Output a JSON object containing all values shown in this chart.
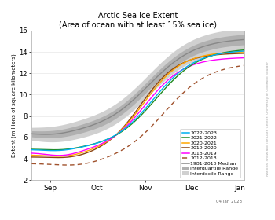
{
  "title_line1": "Arctic Sea Ice Extent",
  "title_line2": "(Area of ocean with at least 15% sea ice)",
  "ylabel": "Extent (millions of square kilometers)",
  "xlabel_date_label": "04 Jan 2023",
  "yticks": [
    2,
    4,
    6,
    8,
    10,
    12,
    14,
    16
  ],
  "ylim": [
    2,
    16
  ],
  "xtick_labels": [
    "Sep",
    "Oct",
    "Nov",
    "Dec",
    "Jan"
  ],
  "background_color": "#ffffff",
  "median_color": "#888888",
  "interquartile_color": "#b0b0b0",
  "interdecile_color": "#d0d0d0",
  "colors": {
    "2022-2023": "#00b0f0",
    "2021-2022": "#228B22",
    "2020-2021": "#FFA500",
    "2019-2020": "#8B4513",
    "2018-2019": "#FF00FF",
    "2012-2013": "#A0522D"
  },
  "watermark_text": "National Snow and Ice Data Center, University of Colorado Boulder",
  "legend_entries": [
    "2022-2023",
    "2021-2022",
    "2020-2021",
    "2019-2020",
    "2018-2019",
    "2012-2013",
    "1981-2010 Median",
    "Interquartile Range",
    "Interdecile Range"
  ]
}
